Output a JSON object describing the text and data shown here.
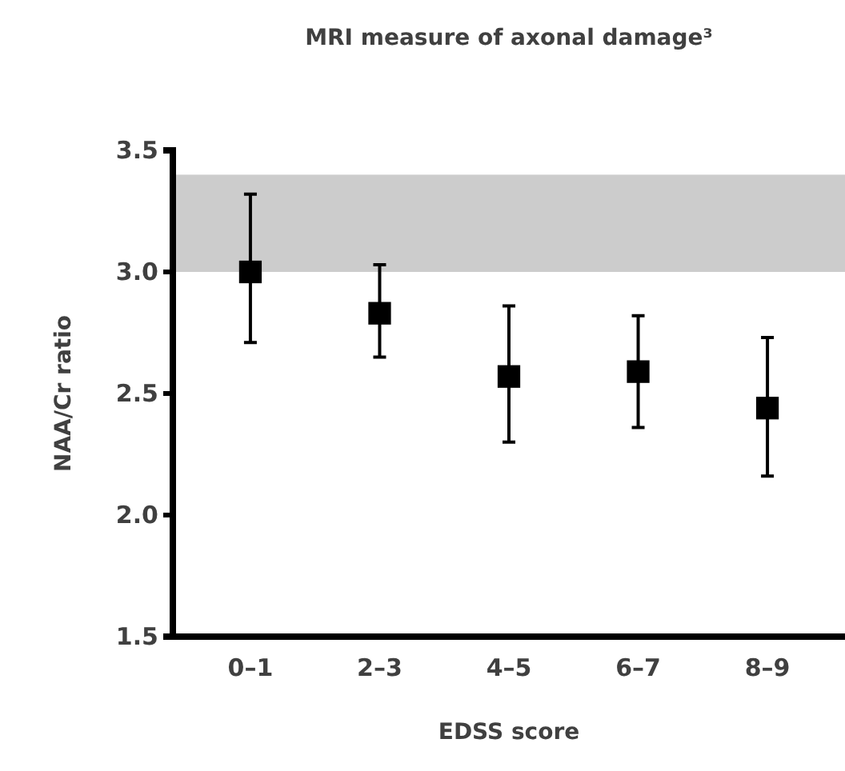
{
  "chart_data": {
    "type": "scatter",
    "title": "MRI measure of axonal damage³",
    "xlabel": "EDSS score",
    "ylabel": "NAA/Cr ratio",
    "categories": [
      "0–1",
      "2–3",
      "4–5",
      "6–7",
      "8–9"
    ],
    "values": [
      3.0,
      2.83,
      2.57,
      2.59,
      2.44
    ],
    "errors": [
      [
        2.71,
        3.32
      ],
      [
        2.65,
        3.03
      ],
      [
        2.3,
        2.86
      ],
      [
        2.36,
        2.82
      ],
      [
        2.16,
        2.73
      ]
    ],
    "color": "#000000",
    "marker": "square",
    "ylim": [
      1.5,
      3.5
    ],
    "yticks": [
      {
        "value": 1.5,
        "label": "1.5"
      },
      {
        "value": 2,
        "label": "2.0"
      },
      {
        "value": 2.5,
        "label": "2.5"
      },
      {
        "value": 3,
        "label": "3.0"
      },
      {
        "value": 3.5,
        "label": "3.5"
      }
    ],
    "bands": [
      {
        "axis": "y",
        "from": 3.0,
        "to": 3.4,
        "color": "#cccccc"
      }
    ]
  }
}
